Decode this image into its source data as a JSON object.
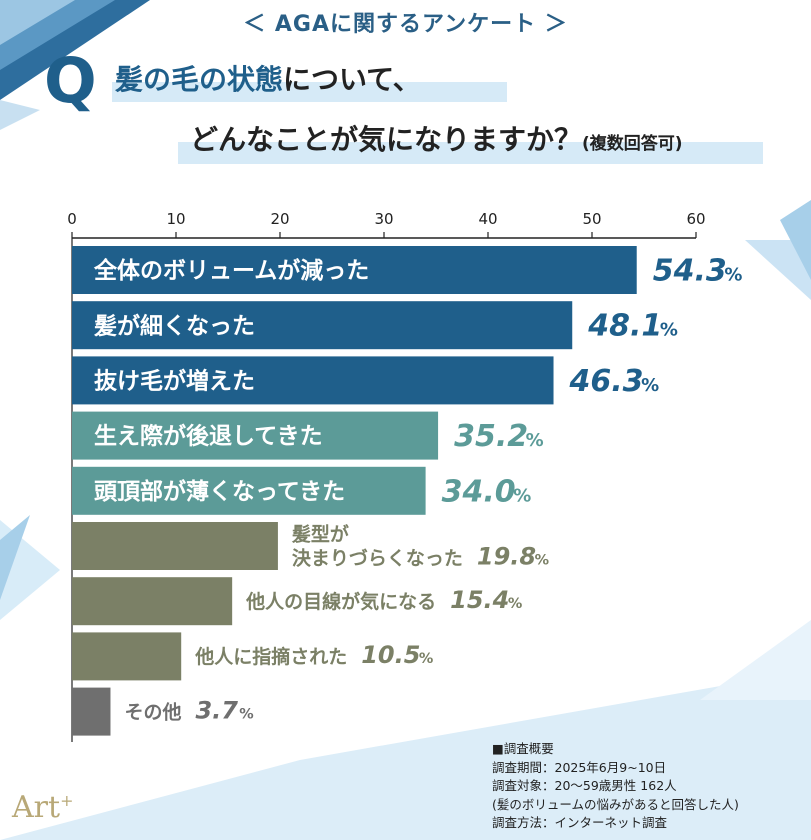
{
  "header": {
    "title": "＜ AGAに関するアンケート ＞",
    "q_mark": "Q",
    "question_highlight": "髪の毛の状態",
    "question_rest1": "について、",
    "question_line2": "どんなことが気になりますか？",
    "question_note": "(複数回答可)"
  },
  "chart_data": {
    "type": "bar",
    "orientation": "horizontal",
    "xlim": [
      0,
      60
    ],
    "xticks": [
      0,
      10,
      20,
      30,
      40,
      50,
      60
    ],
    "categories": [
      "全体のボリュームが減った",
      "髪が細くなった",
      "抜け毛が増えた",
      "生え際が後退してきた",
      "頭頂部が薄くなってきた",
      "髪型が決まりづらくなった",
      "他人の目線が気になる",
      "他人に指摘された",
      "その他"
    ],
    "values": [
      54.3,
      48.1,
      46.3,
      35.2,
      34.0,
      19.8,
      15.4,
      10.5,
      3.7
    ],
    "value_labels": [
      "54.3",
      "48.1",
      "46.3",
      "35.2",
      "34.0",
      "19.8",
      "15.4",
      "10.5",
      "3.7"
    ],
    "unit": "%",
    "category_lines": [
      [
        "全体のボリュームが減った"
      ],
      [
        "髪が細くなった"
      ],
      [
        "抜け毛が増えた"
      ],
      [
        "生え際が後退してきた"
      ],
      [
        "頭頂部が薄くなってきた"
      ],
      [
        "髪型が",
        "決まりづらくなった"
      ],
      [
        "他人の目線が気になる"
      ],
      [
        "他人に指摘された"
      ],
      [
        "その他"
      ]
    ],
    "colors": [
      "#1f5f8b",
      "#1f5f8b",
      "#1f5f8b",
      "#5c9b98",
      "#5c9b98",
      "#7b8066",
      "#7b8066",
      "#7b8066",
      "#6f6f6f"
    ]
  },
  "survey": {
    "title": "■調査概要",
    "period": "調査期間：2025年6月9~10日",
    "target": "調査対象：20～59歳男性 162人",
    "target_note": "(髪のボリュームの悩みがあると回答した人)",
    "method": "調査方法：インターネット調査"
  },
  "logo": {
    "text": "Art",
    "sup": "+"
  }
}
